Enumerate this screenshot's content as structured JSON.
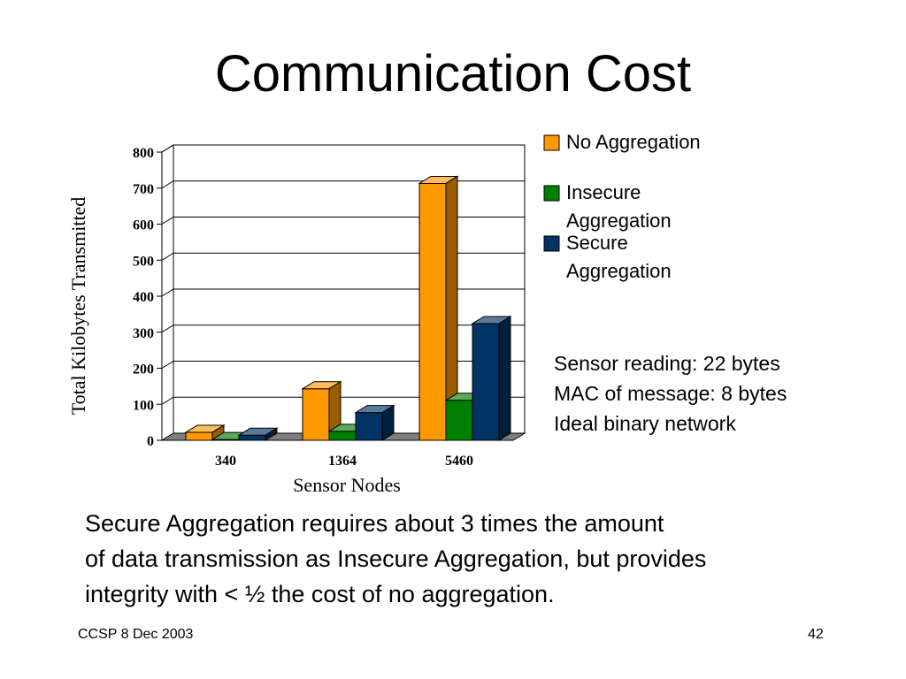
{
  "slide": {
    "title": "Communication Cost",
    "notes": [
      "Sensor reading: 22 bytes",
      "MAC of message: 8 bytes",
      "Ideal binary network"
    ],
    "summary": [
      "Secure Aggregation requires about 3 times the amount",
      "of data transmission as Insecure Aggregation, but provides",
      "integrity with < ½ the cost of no aggregation."
    ],
    "footer_left": "CCSP 8 Dec 2003",
    "footer_right": "42"
  },
  "chart_data": {
    "type": "bar",
    "title": "",
    "xlabel": "Sensor Nodes",
    "ylabel": "Total Kilobytes Transmitted",
    "categories": [
      "340",
      "1364",
      "5460"
    ],
    "ylim": [
      0,
      800
    ],
    "yticks": [
      0,
      100,
      200,
      300,
      400,
      500,
      600,
      700,
      800
    ],
    "grid": true,
    "legend_position": "right",
    "three_d": true,
    "series": [
      {
        "name": "No Aggregation",
        "color": "#FF9900",
        "values": [
          22,
          143,
          713
        ]
      },
      {
        "name": "Insecure Aggregation",
        "color": "#008000",
        "values": [
          2,
          25,
          111
        ]
      },
      {
        "name": "Secure Aggregation",
        "color": "#003366",
        "values": [
          14,
          77,
          324
        ]
      }
    ]
  }
}
